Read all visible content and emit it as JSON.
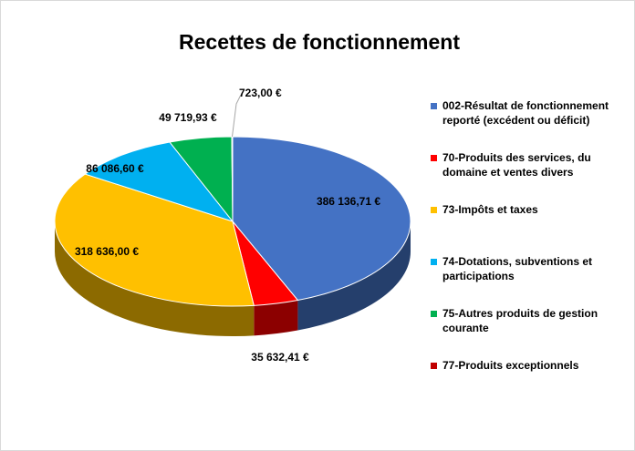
{
  "chart_data": {
    "type": "pie",
    "title": "Recettes de fonctionnement",
    "categories": [
      "002-Résultat de fonctionnement reporté (excédent ou déficit)",
      "70-Produits des services, du domaine et ventes divers",
      "73-Impôts et taxes",
      "74-Dotations, subventions et participations",
      "75-Autres produits de gestion courante",
      "77-Produits exceptionnels"
    ],
    "values": [
      386136.71,
      35632.41,
      318636.0,
      86086.6,
      49719.93,
      723.0
    ],
    "value_labels": [
      "386 136,71 €",
      "35 632,41 €",
      "318 636,00 €",
      "86 086,60 €",
      "49 719,93 €",
      "723,00 €"
    ],
    "colors": [
      "#4472c4",
      "#ff0000",
      "#ffc000",
      "#00b0f0",
      "#00b050",
      "#c00000"
    ],
    "legend": "right"
  }
}
